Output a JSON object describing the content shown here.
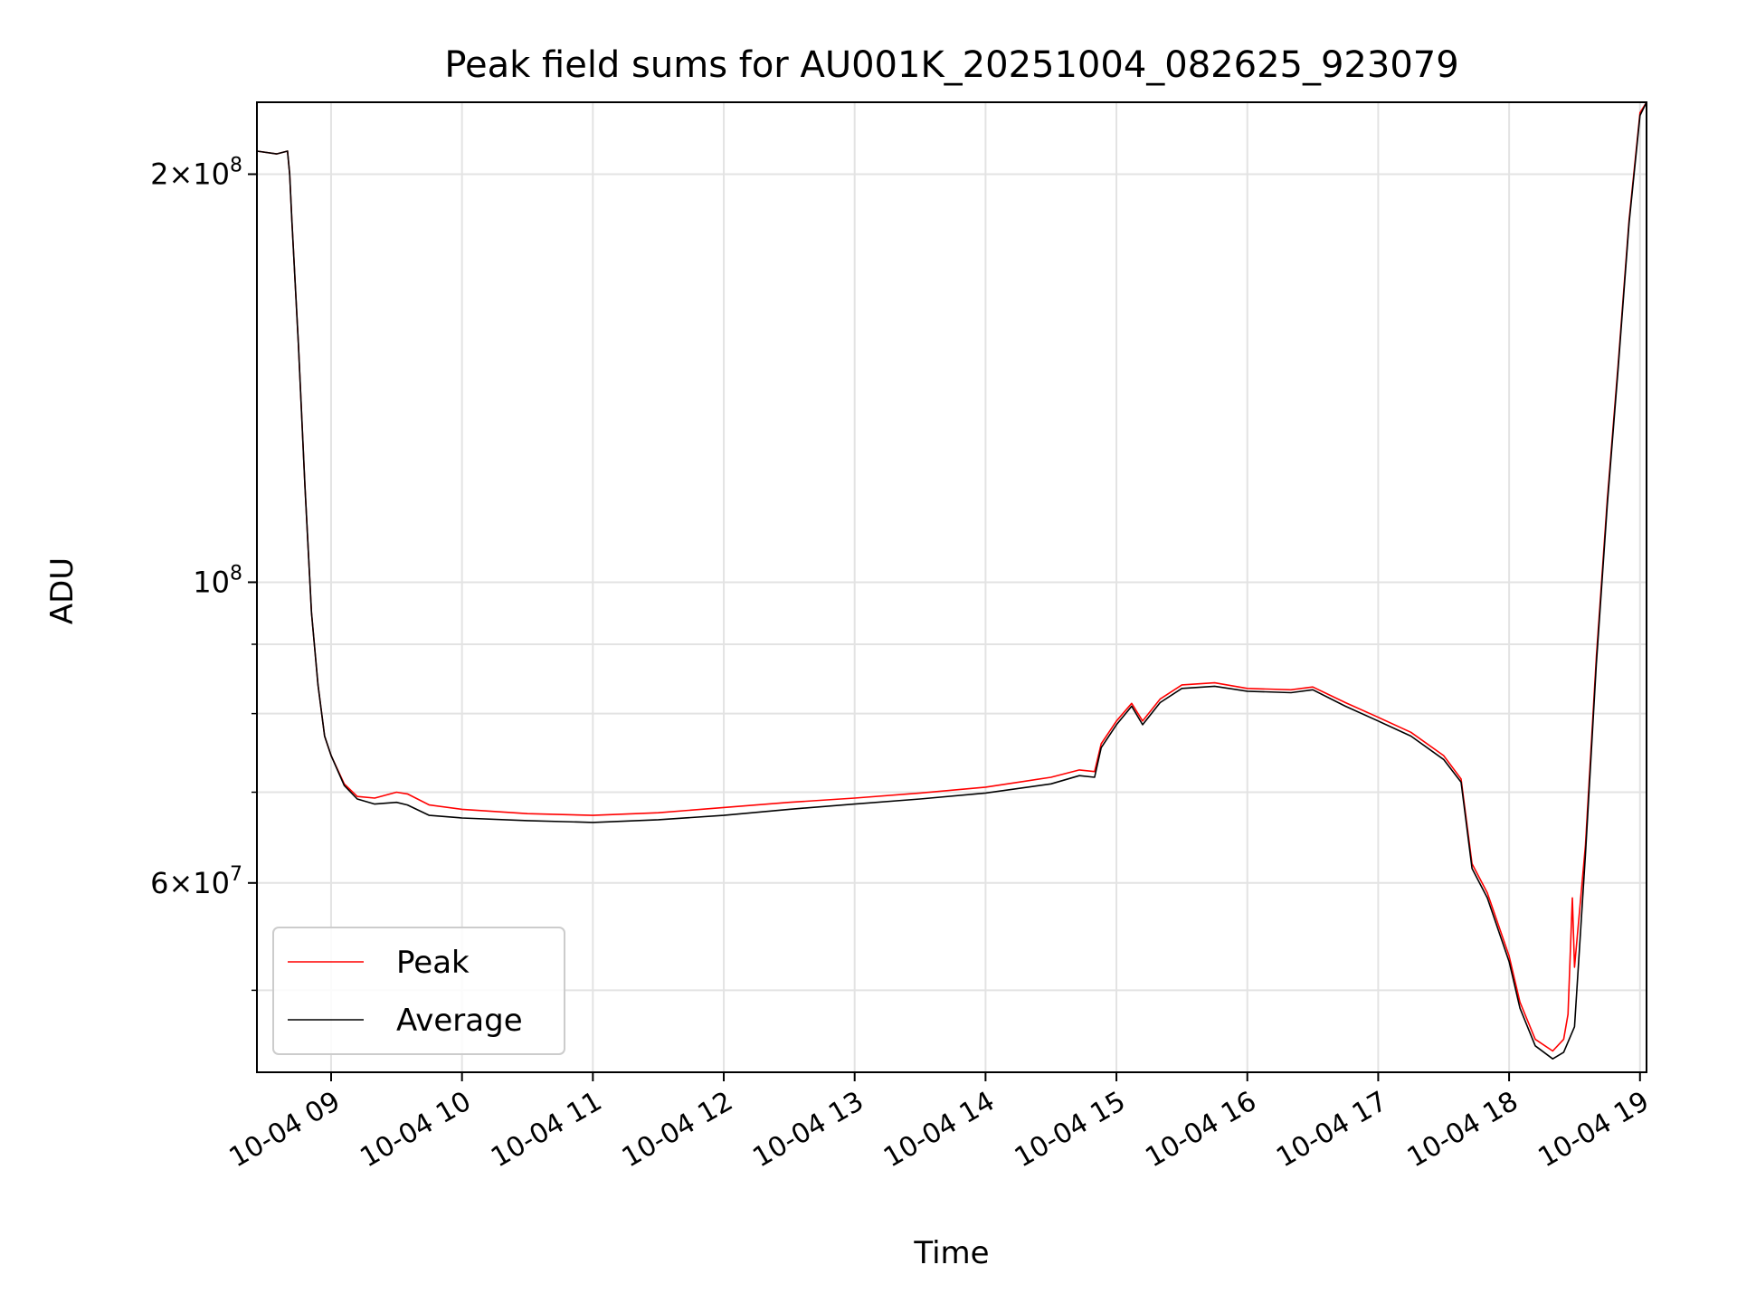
{
  "chart_data": {
    "type": "line",
    "title": "Peak field sums for AU001K_20251004_082625_923079",
    "xlabel": "Time",
    "ylabel": "ADU",
    "x_unit": "date-time",
    "y_scale": "log",
    "xlim": [
      "2025-10-04T08:26",
      "2025-10-04T19:03"
    ],
    "ylim": [
      43500000,
      226000000
    ],
    "grid": true,
    "legend_position": "lower left",
    "x_ticks": [
      {
        "value": "2025-10-04T09:00",
        "label": "10-04 09"
      },
      {
        "value": "2025-10-04T10:00",
        "label": "10-04 10"
      },
      {
        "value": "2025-10-04T11:00",
        "label": "10-04 11"
      },
      {
        "value": "2025-10-04T12:00",
        "label": "10-04 12"
      },
      {
        "value": "2025-10-04T13:00",
        "label": "10-04 13"
      },
      {
        "value": "2025-10-04T14:00",
        "label": "10-04 14"
      },
      {
        "value": "2025-10-04T15:00",
        "label": "10-04 15"
      },
      {
        "value": "2025-10-04T16:00",
        "label": "10-04 16"
      },
      {
        "value": "2025-10-04T17:00",
        "label": "10-04 17"
      },
      {
        "value": "2025-10-04T18:00",
        "label": "10-04 18"
      },
      {
        "value": "2025-10-04T19:00",
        "label": "10-04 19"
      }
    ],
    "y_major_ticks": [
      {
        "value": 100000000,
        "base": "10",
        "exp": "8"
      },
      {
        "value": 200000000,
        "mant": "2",
        "base": "10",
        "exp": "8"
      },
      {
        "value": 60000000,
        "mant": "6",
        "base": "10",
        "exp": "7"
      }
    ],
    "y_minor_ticks": [
      50000000,
      70000000,
      80000000,
      90000000
    ],
    "series": [
      {
        "name": "Peak",
        "color": "#ff0000",
        "x": [
          "2025-10-04T08:26",
          "2025-10-04T08:35",
          "2025-10-04T08:40",
          "2025-10-04T08:41",
          "2025-10-04T08:42",
          "2025-10-04T08:45",
          "2025-10-04T08:48",
          "2025-10-04T08:51",
          "2025-10-04T08:54",
          "2025-10-04T08:57",
          "2025-10-04T09:00",
          "2025-10-04T09:06",
          "2025-10-04T09:12",
          "2025-10-04T09:20",
          "2025-10-04T09:30",
          "2025-10-04T09:35",
          "2025-10-04T09:45",
          "2025-10-04T10:00",
          "2025-10-04T10:30",
          "2025-10-04T11:00",
          "2025-10-04T11:30",
          "2025-10-04T12:00",
          "2025-10-04T12:30",
          "2025-10-04T13:00",
          "2025-10-04T13:30",
          "2025-10-04T14:00",
          "2025-10-04T14:30",
          "2025-10-04T14:43",
          "2025-10-04T14:50",
          "2025-10-04T14:53",
          "2025-10-04T15:00",
          "2025-10-04T15:07",
          "2025-10-04T15:12",
          "2025-10-04T15:20",
          "2025-10-04T15:30",
          "2025-10-04T15:45",
          "2025-10-04T16:00",
          "2025-10-04T16:20",
          "2025-10-04T16:30",
          "2025-10-04T16:45",
          "2025-10-04T17:00",
          "2025-10-04T17:15",
          "2025-10-04T17:30",
          "2025-10-04T17:38",
          "2025-10-04T17:43",
          "2025-10-04T17:50",
          "2025-10-04T18:00",
          "2025-10-04T18:05",
          "2025-10-04T18:12",
          "2025-10-04T18:20",
          "2025-10-04T18:25",
          "2025-10-04T18:27",
          "2025-10-04T18:29",
          "2025-10-04T18:30",
          "2025-10-04T18:35",
          "2025-10-04T18:40",
          "2025-10-04T18:45",
          "2025-10-04T18:50",
          "2025-10-04T18:55",
          "2025-10-04T19:00",
          "2025-10-04T19:03"
        ],
        "y": [
          208000000,
          207000000,
          208000000,
          200000000,
          185000000,
          150000000,
          118000000,
          95000000,
          84000000,
          77000000,
          74500000,
          71000000,
          69500000,
          69300000,
          70000000,
          69800000,
          68500000,
          68000000,
          67500000,
          67300000,
          67600000,
          68200000,
          68800000,
          69300000,
          69900000,
          70600000,
          71800000,
          72700000,
          72500000,
          76000000,
          79000000,
          81400000,
          79000000,
          82000000,
          84000000,
          84300000,
          83500000,
          83300000,
          83700000,
          81500000,
          79500000,
          77500000,
          74500000,
          71600000,
          62000000,
          59000000,
          53000000,
          49000000,
          46000000,
          45100000,
          46000000,
          48000000,
          58500000,
          52000000,
          64000000,
          88000000,
          115000000,
          145000000,
          185000000,
          222000000,
          226000000
        ]
      },
      {
        "name": "Average",
        "color": "#000000",
        "x": [
          "2025-10-04T08:26",
          "2025-10-04T08:35",
          "2025-10-04T08:40",
          "2025-10-04T08:41",
          "2025-10-04T08:42",
          "2025-10-04T08:45",
          "2025-10-04T08:48",
          "2025-10-04T08:51",
          "2025-10-04T08:54",
          "2025-10-04T08:57",
          "2025-10-04T09:00",
          "2025-10-04T09:06",
          "2025-10-04T09:12",
          "2025-10-04T09:20",
          "2025-10-04T09:30",
          "2025-10-04T09:35",
          "2025-10-04T09:45",
          "2025-10-04T10:00",
          "2025-10-04T10:30",
          "2025-10-04T11:00",
          "2025-10-04T11:30",
          "2025-10-04T12:00",
          "2025-10-04T12:30",
          "2025-10-04T13:00",
          "2025-10-04T13:30",
          "2025-10-04T14:00",
          "2025-10-04T14:30",
          "2025-10-04T14:43",
          "2025-10-04T14:50",
          "2025-10-04T14:53",
          "2025-10-04T15:00",
          "2025-10-04T15:07",
          "2025-10-04T15:12",
          "2025-10-04T15:20",
          "2025-10-04T15:30",
          "2025-10-04T15:45",
          "2025-10-04T16:00",
          "2025-10-04T16:20",
          "2025-10-04T16:30",
          "2025-10-04T16:45",
          "2025-10-04T17:00",
          "2025-10-04T17:15",
          "2025-10-04T17:30",
          "2025-10-04T17:38",
          "2025-10-04T17:43",
          "2025-10-04T17:50",
          "2025-10-04T18:00",
          "2025-10-04T18:05",
          "2025-10-04T18:12",
          "2025-10-04T18:20",
          "2025-10-04T18:25",
          "2025-10-04T18:30",
          "2025-10-04T18:35",
          "2025-10-04T18:40",
          "2025-10-04T18:45",
          "2025-10-04T18:50",
          "2025-10-04T18:55",
          "2025-10-04T19:00",
          "2025-10-04T19:03"
        ],
        "y": [
          208000000,
          207000000,
          208000000,
          200000000,
          185000000,
          150000000,
          118000000,
          95000000,
          84000000,
          77000000,
          74500000,
          70800000,
          69200000,
          68600000,
          68800000,
          68500000,
          67300000,
          67000000,
          66700000,
          66500000,
          66800000,
          67300000,
          68000000,
          68600000,
          69200000,
          69900000,
          71000000,
          72000000,
          71800000,
          75500000,
          78500000,
          81000000,
          78500000,
          81500000,
          83500000,
          83800000,
          83100000,
          82900000,
          83300000,
          81000000,
          79000000,
          77000000,
          74000000,
          71200000,
          61500000,
          58500000,
          52500000,
          48500000,
          45500000,
          44500000,
          45000000,
          47000000,
          63000000,
          87000000,
          114000000,
          144000000,
          184000000,
          221000000,
          226000000
        ]
      }
    ]
  }
}
